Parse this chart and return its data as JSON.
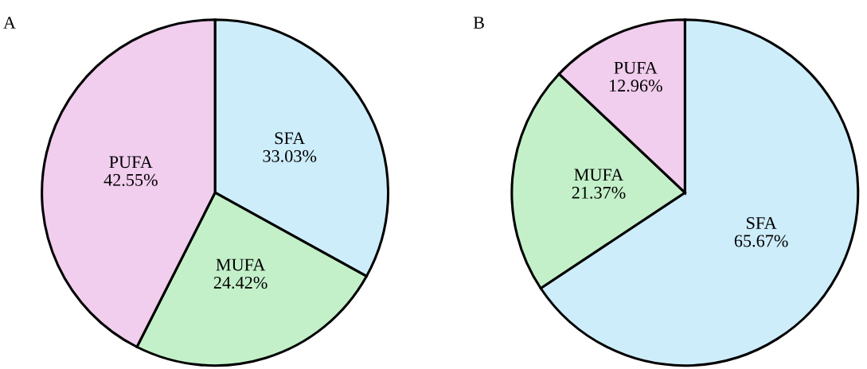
{
  "chart_data": [
    {
      "type": "pie",
      "title": "A",
      "categories": [
        "SFA",
        "MUFA",
        "PUFA"
      ],
      "values": [
        33.03,
        24.42,
        42.55
      ],
      "colors": [
        "#cdedfb",
        "#c3f0c9",
        "#f1cdee"
      ],
      "value_labels": [
        "33.03%",
        "24.42%",
        "42.55%"
      ]
    },
    {
      "type": "pie",
      "title": "B",
      "categories": [
        "SFA",
        "MUFA",
        "PUFA"
      ],
      "values": [
        65.67,
        21.37,
        12.96
      ],
      "colors": [
        "#cdedfb",
        "#c3f0c9",
        "#f1cdee"
      ],
      "value_labels": [
        "65.67%",
        "21.37%",
        "12.96%"
      ]
    }
  ]
}
